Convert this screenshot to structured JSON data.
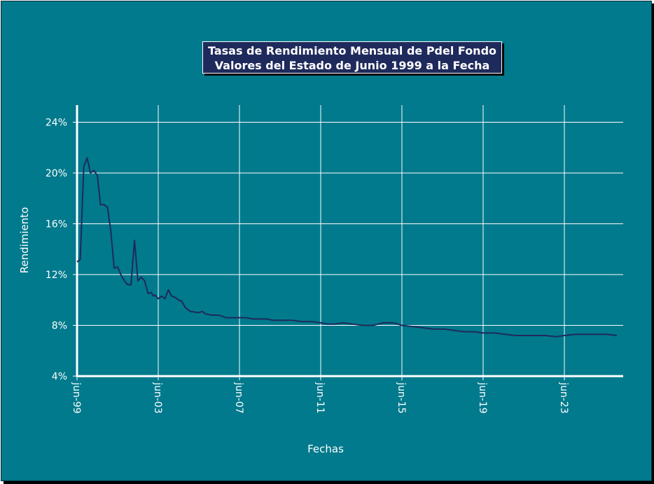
{
  "chart_data": {
    "type": "line",
    "title_lines": [
      "Tasas de Rendimiento Mensual de Pdel Fondo",
      "Valores del Estado de Junio 1999 a la Fecha"
    ],
    "xlabel": "Fechas",
    "ylabel": "Rendimiento",
    "y_ticks": [
      "4%",
      "8%",
      "12%",
      "16%",
      "20%",
      "24%"
    ],
    "x_ticks": [
      "jun-99",
      "jun-03",
      "jun-07",
      "jun-11",
      "jun-15",
      "jun-19",
      "jun-23"
    ],
    "ylim": [
      4,
      26
    ],
    "grid": true,
    "colors": {
      "background": "#007a8c",
      "line": "#1f2a5c",
      "grid": "#ffffff",
      "title_box": "#1f2a5c"
    },
    "series": [
      {
        "x": [
          1999.42,
          1999.58,
          1999.75,
          1999.92,
          2000.08,
          2000.25,
          2000.42,
          2000.58,
          2000.75,
          2000.92,
          2001.08,
          2001.25,
          2001.42,
          2001.58,
          2001.75,
          2001.92,
          2002.08,
          2002.25,
          2002.42,
          2002.58,
          2002.75,
          2002.92,
          2003.08,
          2003.17,
          2003.25,
          2003.42,
          2003.58,
          2003.75,
          2003.92,
          2004.08,
          2004.25,
          2004.42,
          2004.58,
          2004.75,
          2005.0,
          2005.42,
          2005.58,
          2005.75,
          2006.08,
          2006.42,
          2006.75,
          2007.08,
          2007.42,
          2007.75,
          2008.08,
          2008.42,
          2008.75,
          2009.08,
          2009.42,
          2010.0,
          2010.5,
          2011.0,
          2011.42,
          2011.75,
          2012.08,
          2012.5,
          2013.0,
          2013.5,
          2014.0,
          2014.5,
          2015.0,
          2015.42,
          2016.0,
          2016.5,
          2017.0,
          2017.5,
          2018.0,
          2018.5,
          2019.0,
          2019.42,
          2019.75,
          2020.0,
          2020.5,
          2021.0,
          2021.5,
          2022.0,
          2022.5,
          2023.0,
          2023.42,
          2024.0,
          2024.5,
          2025.0,
          2025.5,
          2026.0
        ],
        "y": [
          13.0,
          13.2,
          20.5,
          21.2,
          20.0,
          20.2,
          19.8,
          17.5,
          17.5,
          17.3,
          15.5,
          12.5,
          12.6,
          12.0,
          11.5,
          11.2,
          11.2,
          14.7,
          11.5,
          11.8,
          11.5,
          10.5,
          10.6,
          10.3,
          10.4,
          10.1,
          10.3,
          10.1,
          10.8,
          10.3,
          10.2,
          10.0,
          9.9,
          9.4,
          9.1,
          9.0,
          9.1,
          8.9,
          8.8,
          8.8,
          8.6,
          8.6,
          8.6,
          8.6,
          8.5,
          8.5,
          8.5,
          8.4,
          8.4,
          8.4,
          8.3,
          8.3,
          8.2,
          8.1,
          8.1,
          8.2,
          8.1,
          8.0,
          8.0,
          8.2,
          8.2,
          8.0,
          7.9,
          7.8,
          7.7,
          7.7,
          7.6,
          7.5,
          7.5,
          7.4,
          7.4,
          7.4,
          7.3,
          7.2,
          7.2,
          7.2,
          7.2,
          7.1,
          7.2,
          7.3,
          7.3,
          7.3,
          7.3,
          7.2
        ]
      }
    ]
  }
}
